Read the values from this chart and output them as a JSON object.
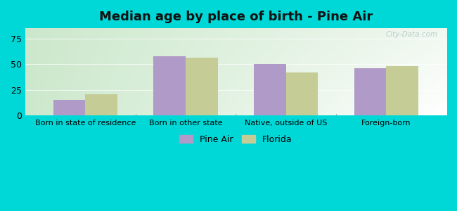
{
  "title": "Median age by place of birth - Pine Air",
  "categories": [
    "Born in state of residence",
    "Born in other state",
    "Native, outside of US",
    "Foreign-born"
  ],
  "pine_air": [
    15,
    58,
    50,
    46
  ],
  "florida": [
    21,
    56,
    42,
    48
  ],
  "pine_air_color": "#b09ac8",
  "florida_color": "#c5cc96",
  "ylim": [
    0,
    85
  ],
  "yticks": [
    0,
    25,
    50,
    75
  ],
  "outer_bg": "#00d8d8",
  "bar_width": 0.32,
  "legend_labels": [
    "Pine Air",
    "Florida"
  ],
  "watermark": "City-Data.com",
  "title_fontsize": 13,
  "label_fontsize": 8,
  "tick_fontsize": 9,
  "grad_top_left": "#cce8cc",
  "grad_top_right": "#f0f8f0",
  "grad_bottom_left": "#cce8cc",
  "grad_bottom_right": "#ffffff"
}
